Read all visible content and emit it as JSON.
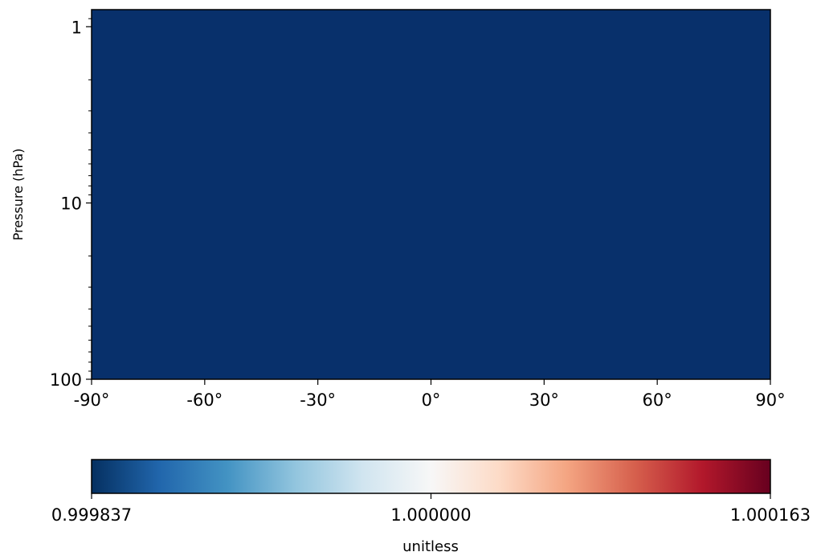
{
  "chart_data": {
    "type": "heatmap",
    "title": "",
    "xlabel": "",
    "ylabel": "Pressure (hPa)",
    "x_ticks": [
      -90,
      -60,
      -30,
      0,
      30,
      60,
      90
    ],
    "x_tick_labels": [
      "-90°",
      "-60°",
      "-30°",
      "0°",
      "30°",
      "60°",
      "90°"
    ],
    "xlim": [
      -90,
      90
    ],
    "y_scale": "log",
    "y_inverted": true,
    "y_ticks": [
      1,
      10,
      100
    ],
    "y_tick_labels": [
      "1",
      "10",
      "100"
    ],
    "ylim": [
      100,
      0.8
    ],
    "field_value": 0.999837,
    "field_color": "#08306b",
    "grid": false,
    "colorbar": {
      "orientation": "horizontal",
      "colormap": "RdBu_r",
      "min": 0.999837,
      "max": 1.000163,
      "ticks": [
        0.999837,
        1.0,
        1.000163
      ],
      "tick_labels": [
        "0.999837",
        "1.000000",
        "1.000163"
      ],
      "label": "unitless",
      "colors": [
        "#053061",
        "#2166ac",
        "#4393c3",
        "#92c5de",
        "#d1e5f0",
        "#f7f7f7",
        "#fddbc7",
        "#f4a582",
        "#d6604d",
        "#b2182b",
        "#67001f"
      ]
    }
  }
}
